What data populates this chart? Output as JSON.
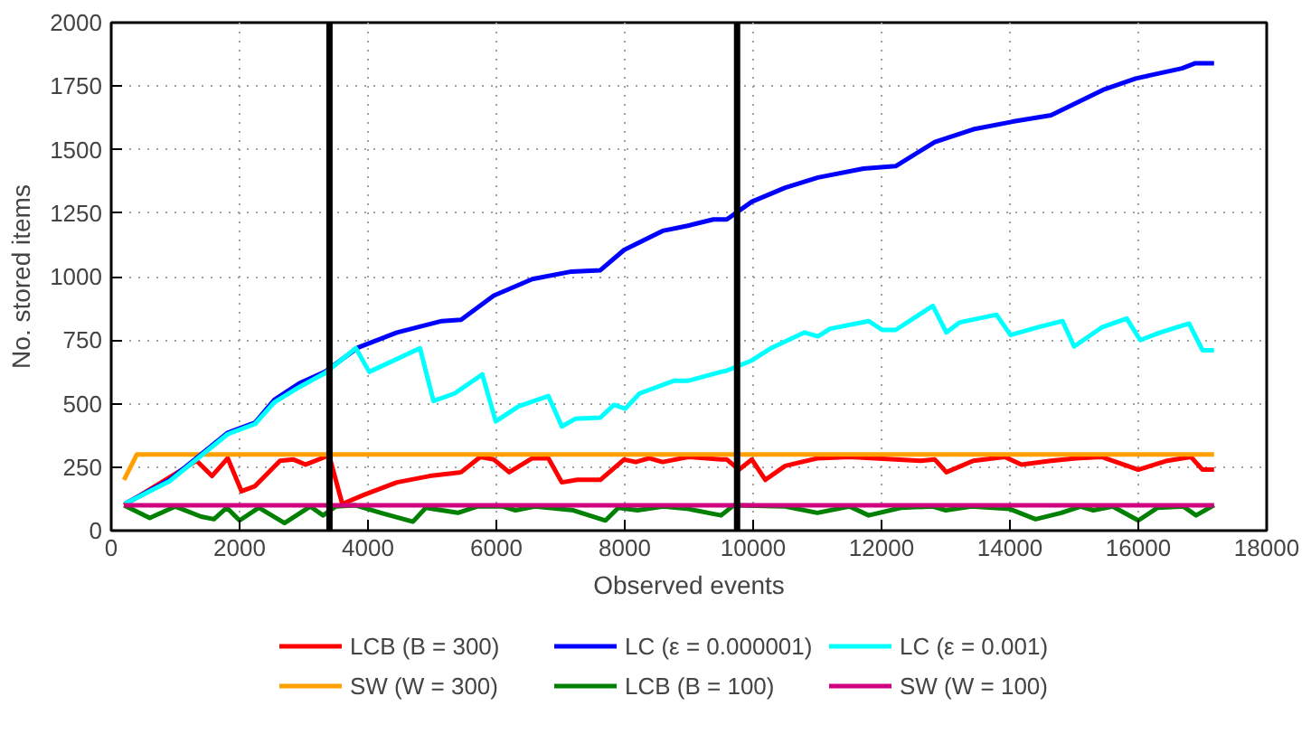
{
  "chart_data": {
    "type": "line",
    "xlabel": "Observed events",
    "ylabel": "No. stored items",
    "xlim": [
      0,
      18000
    ],
    "xticks": [
      0,
      2000,
      4000,
      6000,
      8000,
      10000,
      12000,
      14000,
      16000,
      18000
    ],
    "ylim": [
      0,
      2000
    ],
    "yticks": [
      0,
      250,
      500,
      750,
      1000,
      1250,
      1500,
      1750,
      2000
    ],
    "grid": true,
    "legend": "bottom",
    "line_style": "solid",
    "ref_lines": [
      {
        "axis": "x",
        "value": 3400,
        "color": "#000000"
      },
      {
        "axis": "x",
        "value": 9750,
        "color": "#000000"
      }
    ],
    "series": [
      {
        "name": "LCB (B = 300)",
        "color": "#ff0000",
        "x": [
          200,
          1330,
          1570,
          1815,
          2030,
          2240,
          2630,
          2840,
          3030,
          3330,
          3390,
          3600,
          3930,
          4450,
          4960,
          5450,
          5750,
          5960,
          6200,
          6560,
          6810,
          7020,
          7260,
          7620,
          7990,
          8170,
          8380,
          8590,
          8990,
          9500,
          9590,
          9780,
          9980,
          10190,
          10500,
          11010,
          11500,
          12610,
          12830,
          13010,
          13430,
          13920,
          14180,
          14640,
          15030,
          15430,
          16000,
          16450,
          16820,
          17000,
          17180
        ],
        "values": [
          100,
          275,
          215,
          285,
          155,
          175,
          275,
          280,
          260,
          290,
          300,
          105,
          140,
          190,
          215,
          230,
          290,
          280,
          230,
          285,
          285,
          190,
          200,
          200,
          280,
          270,
          285,
          270,
          290,
          280,
          280,
          240,
          280,
          200,
          255,
          285,
          290,
          275,
          280,
          230,
          275,
          290,
          260,
          275,
          285,
          290,
          240,
          275,
          290,
          240,
          240
        ]
      },
      {
        "name": "SW (W = 300)",
        "color": "#ffa000",
        "x": [
          200,
          400,
          17180
        ],
        "values": [
          200,
          300,
          300
        ]
      },
      {
        "name": "LC (ε = 0.000001)",
        "color": "#0000ff",
        "x": [
          210,
          910,
          1815,
          2240,
          2540,
          2930,
          3330,
          3840,
          4450,
          5150,
          5450,
          5960,
          6560,
          7170,
          7620,
          7990,
          8590,
          8980,
          9380,
          9590,
          9980,
          10500,
          11010,
          11720,
          12220,
          12830,
          13430,
          14040,
          14640,
          15450,
          15960,
          16680,
          16890,
          17180
        ],
        "values": [
          105,
          200,
          385,
          425,
          515,
          580,
          625,
          720,
          780,
          825,
          830,
          925,
          990,
          1020,
          1025,
          1105,
          1180,
          1200,
          1225,
          1225,
          1295,
          1350,
          1390,
          1425,
          1435,
          1530,
          1580,
          1610,
          1635,
          1735,
          1780,
          1820,
          1840,
          1840
        ]
      },
      {
        "name": "LCB (B = 100)",
        "color": "#008000",
        "x": [
          200,
          600,
          1000,
          1400,
          1600,
          1800,
          2000,
          2300,
          2700,
          3100,
          3300,
          3500,
          3800,
          4200,
          4700,
          4900,
          5400,
          5700,
          6100,
          6300,
          6600,
          7200,
          7700,
          7900,
          8200,
          8600,
          9000,
          9500,
          9700,
          10500,
          11000,
          11500,
          11800,
          12300,
          12800,
          13000,
          13400,
          14000,
          14400,
          14800,
          15100,
          15300,
          15600,
          16000,
          16300,
          16700,
          16900,
          17180
        ],
        "values": [
          100,
          50,
          95,
          55,
          45,
          90,
          40,
          90,
          30,
          95,
          60,
          95,
          100,
          70,
          35,
          90,
          70,
          95,
          95,
          80,
          95,
          80,
          40,
          90,
          80,
          95,
          85,
          60,
          100,
          95,
          70,
          95,
          60,
          90,
          95,
          80,
          95,
          85,
          45,
          70,
          95,
          80,
          95,
          40,
          90,
          95,
          60,
          100
        ]
      },
      {
        "name": "LC (ε = 0.001)",
        "color": "#00ffff",
        "x": [
          210,
          910,
          1815,
          2240,
          2540,
          2930,
          3330,
          3810,
          4020,
          4810,
          5020,
          5350,
          5780,
          5990,
          6350,
          6810,
          7020,
          7230,
          7620,
          7830,
          8010,
          8230,
          8770,
          8990,
          9500,
          9590,
          9980,
          10290,
          10800,
          11010,
          11200,
          11800,
          12010,
          12220,
          12800,
          13010,
          13220,
          13790,
          14010,
          14430,
          14820,
          15000,
          15430,
          15820,
          16030,
          16340,
          16790,
          17000,
          17180
        ],
        "values": [
          105,
          195,
          380,
          420,
          505,
          565,
          620,
          718,
          625,
          718,
          510,
          540,
          615,
          430,
          490,
          530,
          410,
          440,
          445,
          495,
          480,
          540,
          590,
          590,
          625,
          630,
          670,
          720,
          780,
          765,
          795,
          825,
          790,
          790,
          885,
          780,
          820,
          850,
          770,
          800,
          825,
          725,
          800,
          835,
          750,
          780,
          815,
          710,
          710
        ]
      },
      {
        "name": "SW (W = 100)",
        "color": "#d0007f",
        "x": [
          200,
          17180
        ],
        "values": [
          100,
          100
        ]
      }
    ]
  }
}
